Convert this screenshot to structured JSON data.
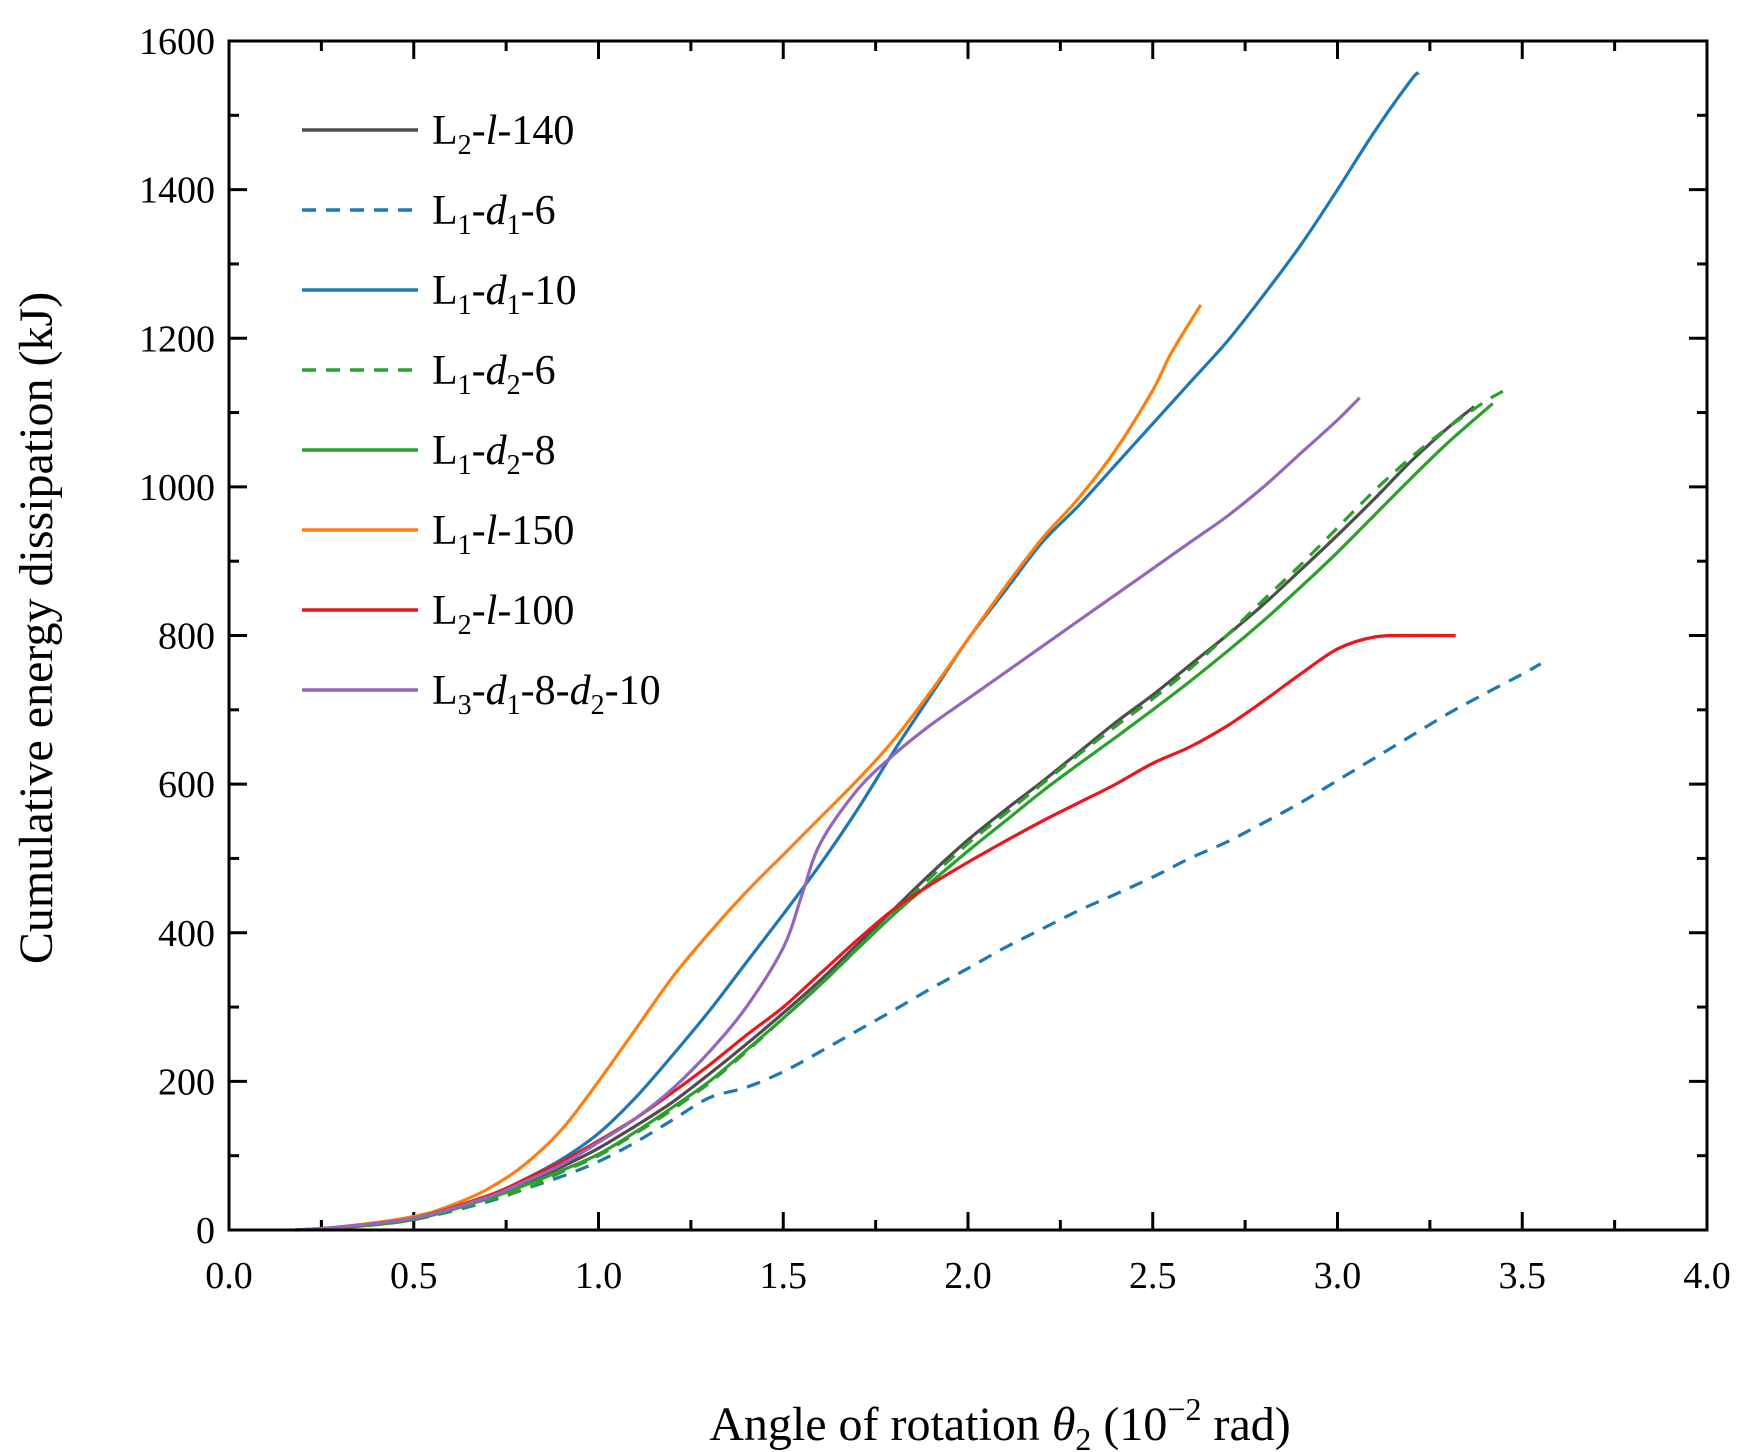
{
  "chart_data": {
    "type": "line",
    "title": "",
    "xlabel": {
      "main": "Angle of rotation ",
      "sym": "θ",
      "sym_sub": "2",
      "unit_pre": " (10",
      "unit_exp": "−2",
      "unit_post": " rad)"
    },
    "ylabel": "Cumulative energy dissipation (kJ)",
    "xlim": [
      0.0,
      4.0
    ],
    "ylim": [
      0,
      1600
    ],
    "xticks": [
      "0.0",
      "0.5",
      "1.0",
      "1.5",
      "2.0",
      "2.5",
      "3.0",
      "3.5",
      "4.0"
    ],
    "yticks": [
      "0",
      "200",
      "400",
      "600",
      "800",
      "1000",
      "1200",
      "1400",
      "1600"
    ],
    "legend_position": "top-left",
    "series": [
      {
        "name": "L2-l-140",
        "label": [
          [
            "L",
            ""
          ],
          [
            "2",
            "sub"
          ],
          [
            "-",
            ""
          ],
          [
            "l",
            "i"
          ],
          [
            "-140",
            ""
          ]
        ],
        "color": "#4d4d4d",
        "dash": "",
        "x": [
          0.18,
          0.3,
          0.4,
          0.5,
          0.6,
          0.7,
          0.8,
          0.9,
          1.0,
          1.1,
          1.2,
          1.3,
          1.4,
          1.5,
          1.6,
          1.7,
          1.8,
          1.9,
          2.0,
          2.1,
          2.2,
          2.3,
          2.4,
          2.5,
          2.6,
          2.7,
          2.8,
          2.9,
          3.0,
          3.1,
          3.2,
          3.3,
          3.37
        ],
        "y": [
          0,
          3,
          9,
          18,
          30,
          45,
          63,
          85,
          110,
          140,
          172,
          210,
          250,
          292,
          336,
          384,
          432,
          480,
          525,
          565,
          603,
          643,
          683,
          720,
          760,
          800,
          842,
          888,
          935,
          984,
          1035,
          1080,
          1108
        ]
      },
      {
        "name": "L1-d1-6",
        "label": [
          [
            "L",
            ""
          ],
          [
            "1",
            "sub"
          ],
          [
            "-",
            ""
          ],
          [
            "d",
            "i"
          ],
          [
            "1",
            "sub"
          ],
          [
            "-6",
            ""
          ]
        ],
        "color": "#1f77b4",
        "dash": "14,10",
        "x": [
          0.18,
          0.3,
          0.5,
          0.7,
          0.8,
          0.9,
          1.0,
          1.1,
          1.2,
          1.3,
          1.4,
          1.5,
          1.6,
          1.7,
          1.8,
          1.9,
          2.0,
          2.1,
          2.2,
          2.3,
          2.4,
          2.5,
          2.6,
          2.7,
          2.8,
          2.9,
          3.0,
          3.1,
          3.2,
          3.3,
          3.4,
          3.5,
          3.55
        ],
        "y": [
          0,
          3,
          14,
          38,
          55,
          72,
          92,
          118,
          148,
          178,
          192,
          213,
          240,
          268,
          296,
          325,
          352,
          380,
          405,
          430,
          452,
          475,
          500,
          522,
          548,
          575,
          605,
          635,
          665,
          695,
          722,
          748,
          762
        ]
      },
      {
        "name": "L1-d1-10",
        "label": [
          [
            "L",
            ""
          ],
          [
            "1",
            "sub"
          ],
          [
            "-",
            ""
          ],
          [
            "d",
            "i"
          ],
          [
            "1",
            "sub"
          ],
          [
            "-10",
            ""
          ]
        ],
        "color": "#1f77b4",
        "dash": "",
        "x": [
          0.18,
          0.3,
          0.5,
          0.7,
          0.8,
          0.9,
          1.0,
          1.1,
          1.2,
          1.3,
          1.4,
          1.5,
          1.6,
          1.7,
          1.8,
          1.9,
          2.0,
          2.1,
          2.2,
          2.3,
          2.4,
          2.5,
          2.6,
          2.7,
          2.8,
          2.9,
          3.0,
          3.1,
          3.2,
          3.22
        ],
        "y": [
          0,
          3,
          15,
          45,
          68,
          95,
          130,
          178,
          235,
          295,
          360,
          425,
          492,
          565,
          645,
          720,
          795,
          860,
          925,
          975,
          1030,
          1085,
          1140,
          1195,
          1258,
          1325,
          1400,
          1478,
          1548,
          1557
        ]
      },
      {
        "name": "L1-d2-6",
        "label": [
          [
            "L",
            ""
          ],
          [
            "1",
            "sub"
          ],
          [
            "-",
            ""
          ],
          [
            "d",
            "i"
          ],
          [
            "2",
            "sub"
          ],
          [
            "-6",
            ""
          ]
        ],
        "color": "#2ca02c",
        "dash": "14,10",
        "x": [
          0.18,
          0.3,
          0.5,
          0.7,
          0.8,
          0.9,
          1.0,
          1.1,
          1.2,
          1.3,
          1.4,
          1.5,
          1.6,
          1.7,
          1.8,
          1.9,
          2.0,
          2.1,
          2.2,
          2.3,
          2.4,
          2.5,
          2.6,
          2.7,
          2.8,
          2.9,
          3.0,
          3.1,
          3.2,
          3.3,
          3.4,
          3.46
        ],
        "y": [
          0,
          3,
          14,
          40,
          55,
          78,
          100,
          130,
          162,
          198,
          240,
          285,
          330,
          378,
          428,
          475,
          520,
          560,
          600,
          640,
          678,
          715,
          755,
          800,
          848,
          895,
          945,
          995,
          1040,
          1080,
          1115,
          1132
        ]
      },
      {
        "name": "L1-d2-8",
        "label": [
          [
            "L",
            ""
          ],
          [
            "1",
            "sub"
          ],
          [
            "-",
            ""
          ],
          [
            "d",
            "i"
          ],
          [
            "2",
            "sub"
          ],
          [
            "-8",
            ""
          ]
        ],
        "color": "#2ca02c",
        "dash": "",
        "x": [
          0.18,
          0.3,
          0.5,
          0.7,
          0.8,
          0.9,
          1.0,
          1.1,
          1.2,
          1.3,
          1.4,
          1.5,
          1.6,
          1.7,
          1.8,
          1.9,
          2.0,
          2.1,
          2.2,
          2.3,
          2.4,
          2.5,
          2.6,
          2.7,
          2.8,
          2.9,
          3.0,
          3.1,
          3.2,
          3.3,
          3.42
        ],
        "y": [
          0,
          3,
          14,
          42,
          60,
          80,
          102,
          132,
          165,
          200,
          242,
          285,
          330,
          378,
          425,
          468,
          510,
          550,
          590,
          627,
          663,
          700,
          738,
          778,
          820,
          865,
          912,
          962,
          1012,
          1060,
          1112
        ]
      },
      {
        "name": "L1-l-150",
        "label": [
          [
            "L",
            ""
          ],
          [
            "1",
            "sub"
          ],
          [
            "-",
            ""
          ],
          [
            "l",
            "i"
          ],
          [
            "-150",
            ""
          ]
        ],
        "color": "#ff7f0e",
        "dash": "",
        "x": [
          0.18,
          0.3,
          0.5,
          0.6,
          0.7,
          0.8,
          0.9,
          1.0,
          1.1,
          1.2,
          1.3,
          1.4,
          1.5,
          1.6,
          1.7,
          1.8,
          1.9,
          2.0,
          2.1,
          2.2,
          2.3,
          2.4,
          2.5,
          2.55,
          2.63
        ],
        "y": [
          0,
          4,
          18,
          33,
          55,
          88,
          135,
          200,
          270,
          340,
          400,
          455,
          505,
          555,
          605,
          660,
          725,
          795,
          865,
          930,
          985,
          1050,
          1130,
          1180,
          1245
        ]
      },
      {
        "name": "L2-l-100",
        "label": [
          [
            "L",
            ""
          ],
          [
            "2",
            "sub"
          ],
          [
            "-",
            ""
          ],
          [
            "l",
            "i"
          ],
          [
            "-100",
            ""
          ]
        ],
        "color": "#e8191e",
        "dash": "",
        "x": [
          0.18,
          0.3,
          0.5,
          0.7,
          0.8,
          0.9,
          1.0,
          1.1,
          1.2,
          1.3,
          1.4,
          1.5,
          1.6,
          1.7,
          1.8,
          1.9,
          2.0,
          2.1,
          2.2,
          2.3,
          2.4,
          2.5,
          2.6,
          2.7,
          2.8,
          2.9,
          3.0,
          3.1,
          3.2,
          3.32
        ],
        "y": [
          0,
          4,
          16,
          46,
          68,
          92,
          120,
          150,
          185,
          222,
          262,
          300,
          345,
          390,
          432,
          465,
          495,
          523,
          550,
          575,
          600,
          628,
          650,
          678,
          712,
          748,
          782,
          798,
          800,
          800
        ]
      },
      {
        "name": "L3-d1-8-d2-10",
        "label": [
          [
            "L",
            ""
          ],
          [
            "3",
            "sub"
          ],
          [
            "-",
            ""
          ],
          [
            "d",
            "i"
          ],
          [
            "1",
            "sub"
          ],
          [
            "-8-",
            ""
          ],
          [
            "d",
            "i"
          ],
          [
            "2",
            "sub"
          ],
          [
            "-10",
            ""
          ]
        ],
        "color": "#9467bd",
        "dash": "",
        "x": [
          0.18,
          0.3,
          0.5,
          0.7,
          0.8,
          0.9,
          1.0,
          1.1,
          1.2,
          1.3,
          1.4,
          1.5,
          1.55,
          1.6,
          1.7,
          1.8,
          1.9,
          2.0,
          2.1,
          2.2,
          2.3,
          2.4,
          2.5,
          2.6,
          2.7,
          2.8,
          2.9,
          3.0,
          3.06
        ],
        "y": [
          0,
          4,
          16,
          44,
          65,
          88,
          118,
          150,
          190,
          240,
          300,
          380,
          450,
          520,
          592,
          640,
          680,
          715,
          750,
          785,
          820,
          855,
          890,
          925,
          960,
          1000,
          1045,
          1090,
          1120
        ]
      }
    ]
  }
}
